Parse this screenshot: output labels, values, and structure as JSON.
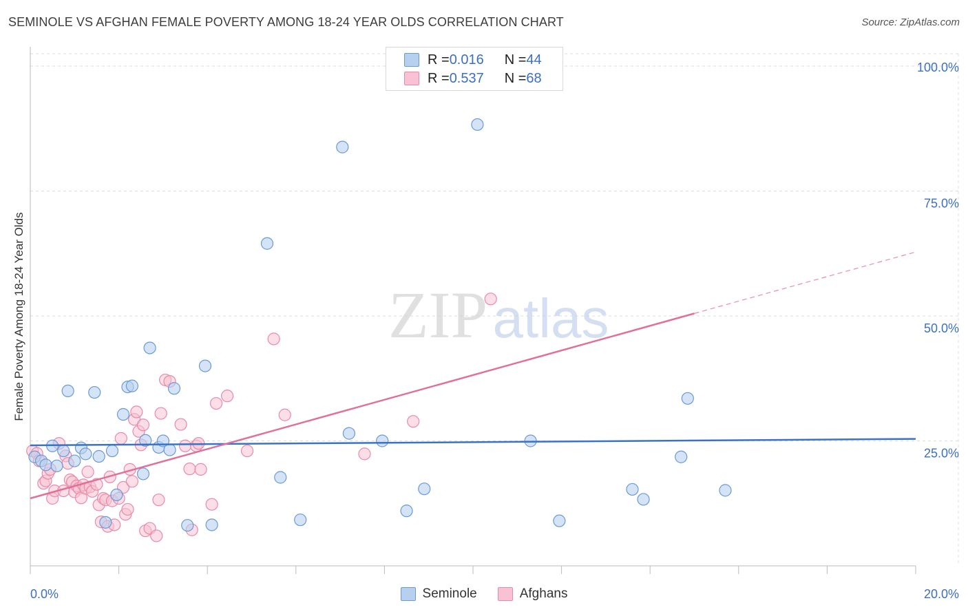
{
  "title": "SEMINOLE VS AFGHAN FEMALE POVERTY AMONG 18-24 YEAR OLDS CORRELATION CHART",
  "source": "Source: ZipAtlas.com",
  "watermark": {
    "zip": "ZIP",
    "atlas": "atlas"
  },
  "colors": {
    "seminole_fill": "#b8d0f0",
    "seminole_stroke": "#6a9ad6",
    "seminole_line": "#3a72c8",
    "afghan_fill": "#f8c2d4",
    "afghan_stroke": "#e88aa8",
    "afghan_line": "#e0709a",
    "tick_label": "#3b6fc4",
    "grid": "#dddddd"
  },
  "legend_top": {
    "rows": [
      {
        "r_label": "R = ",
        "r_value": "0.016",
        "n_label": "N = ",
        "n_value": "44"
      },
      {
        "r_label": "R = ",
        "r_value": "0.537",
        "n_label": "N = ",
        "n_value": "68"
      }
    ]
  },
  "chart_data": {
    "type": "scatter",
    "xlabel": "",
    "ylabel": "Female Poverty Among 18-24 Year Olds",
    "xlim": [
      0,
      20
    ],
    "ylim": [
      0,
      100
    ],
    "x_tick_labels": [
      "0.0%",
      "20.0%"
    ],
    "y_ticks": [
      25,
      50,
      75,
      100
    ],
    "y_tick_labels": [
      "25.0%",
      "50.0%",
      "75.0%",
      "100.0%"
    ],
    "grid": true,
    "legend": "bottom-center",
    "series": [
      {
        "name": "Seminole",
        "r": 0.016,
        "n": 44,
        "trend": {
          "x": [
            0,
            20
          ],
          "y": [
            24.1,
            25.4
          ]
        },
        "points": [
          [
            0.1,
            21.8
          ],
          [
            0.25,
            21.0
          ],
          [
            0.35,
            20.2
          ],
          [
            0.5,
            24.0
          ],
          [
            0.6,
            20.0
          ],
          [
            0.75,
            23.0
          ],
          [
            0.85,
            35.0
          ],
          [
            1.0,
            21.0
          ],
          [
            1.15,
            23.6
          ],
          [
            1.25,
            22.4
          ],
          [
            1.45,
            34.7
          ],
          [
            1.55,
            21.9
          ],
          [
            1.7,
            8.7
          ],
          [
            1.85,
            23.0
          ],
          [
            1.95,
            14.2
          ],
          [
            2.1,
            30.3
          ],
          [
            2.2,
            35.8
          ],
          [
            2.3,
            36.0
          ],
          [
            2.55,
            18.4
          ],
          [
            2.6,
            25.1
          ],
          [
            2.7,
            43.6
          ],
          [
            2.9,
            23.7
          ],
          [
            3.0,
            25.0
          ],
          [
            3.15,
            23.2
          ],
          [
            3.25,
            35.5
          ],
          [
            3.55,
            8.1
          ],
          [
            3.95,
            40.0
          ],
          [
            4.1,
            8.2
          ],
          [
            5.35,
            64.5
          ],
          [
            5.65,
            17.7
          ],
          [
            6.1,
            9.2
          ],
          [
            7.05,
            83.8
          ],
          [
            7.2,
            26.5
          ],
          [
            7.95,
            25.0
          ],
          [
            8.5,
            11.0
          ],
          [
            8.9,
            15.4
          ],
          [
            10.1,
            88.3
          ],
          [
            11.3,
            25.0
          ],
          [
            11.95,
            9.0
          ],
          [
            13.6,
            15.3
          ],
          [
            13.85,
            13.3
          ],
          [
            14.7,
            21.8
          ],
          [
            14.85,
            33.5
          ],
          [
            15.7,
            15.1
          ]
        ]
      },
      {
        "name": "Afghans",
        "r": 0.537,
        "n": 68,
        "trend": {
          "x": [
            0,
            15
          ],
          "y": [
            13.5,
            50.5
          ]
        },
        "trend_extension": {
          "x": [
            15,
            20
          ],
          "y": [
            50.5,
            62.8
          ]
        },
        "points": [
          [
            0.05,
            23.0
          ],
          [
            0.15,
            22.5
          ],
          [
            0.2,
            21.0
          ],
          [
            0.3,
            16.5
          ],
          [
            0.35,
            17.0
          ],
          [
            0.4,
            18.5
          ],
          [
            0.45,
            19.3
          ],
          [
            0.5,
            13.5
          ],
          [
            0.55,
            15.0
          ],
          [
            0.65,
            24.5
          ],
          [
            0.75,
            15.0
          ],
          [
            0.8,
            22.0
          ],
          [
            0.85,
            20.5
          ],
          [
            0.9,
            17.2
          ],
          [
            0.95,
            16.8
          ],
          [
            1.0,
            14.8
          ],
          [
            1.05,
            16.0
          ],
          [
            1.1,
            15.5
          ],
          [
            1.15,
            13.6
          ],
          [
            1.2,
            16.2
          ],
          [
            1.25,
            15.5
          ],
          [
            1.3,
            18.8
          ],
          [
            1.35,
            15.8
          ],
          [
            1.4,
            14.9
          ],
          [
            1.5,
            16.3
          ],
          [
            1.55,
            12.2
          ],
          [
            1.6,
            8.8
          ],
          [
            1.65,
            13.5
          ],
          [
            1.7,
            13.2
          ],
          [
            1.75,
            7.9
          ],
          [
            1.8,
            17.8
          ],
          [
            1.85,
            13.0
          ],
          [
            1.9,
            8.2
          ],
          [
            2.0,
            13.5
          ],
          [
            2.05,
            25.5
          ],
          [
            2.1,
            15.7
          ],
          [
            2.15,
            10.3
          ],
          [
            2.2,
            11.3
          ],
          [
            2.25,
            19.3
          ],
          [
            2.3,
            16.9
          ],
          [
            2.35,
            29.3
          ],
          [
            2.4,
            30.8
          ],
          [
            2.45,
            26.9
          ],
          [
            2.5,
            24.2
          ],
          [
            2.55,
            28.2
          ],
          [
            2.6,
            7.0
          ],
          [
            2.7,
            7.5
          ],
          [
            2.85,
            6.0
          ],
          [
            2.9,
            13.2
          ],
          [
            2.95,
            30.5
          ],
          [
            3.05,
            37.2
          ],
          [
            3.15,
            36.9
          ],
          [
            3.4,
            28.3
          ],
          [
            3.5,
            24.0
          ],
          [
            3.6,
            19.4
          ],
          [
            3.75,
            24.0
          ],
          [
            3.8,
            24.5
          ],
          [
            3.85,
            19.3
          ],
          [
            4.1,
            12.3
          ],
          [
            4.2,
            32.5
          ],
          [
            4.45,
            34.0
          ],
          [
            4.9,
            23.0
          ],
          [
            5.5,
            45.4
          ],
          [
            5.75,
            30.2
          ],
          [
            7.55,
            22.4
          ],
          [
            8.65,
            28.9
          ],
          [
            10.4,
            53.4
          ],
          [
            3.65,
            7.2
          ]
        ]
      }
    ]
  }
}
